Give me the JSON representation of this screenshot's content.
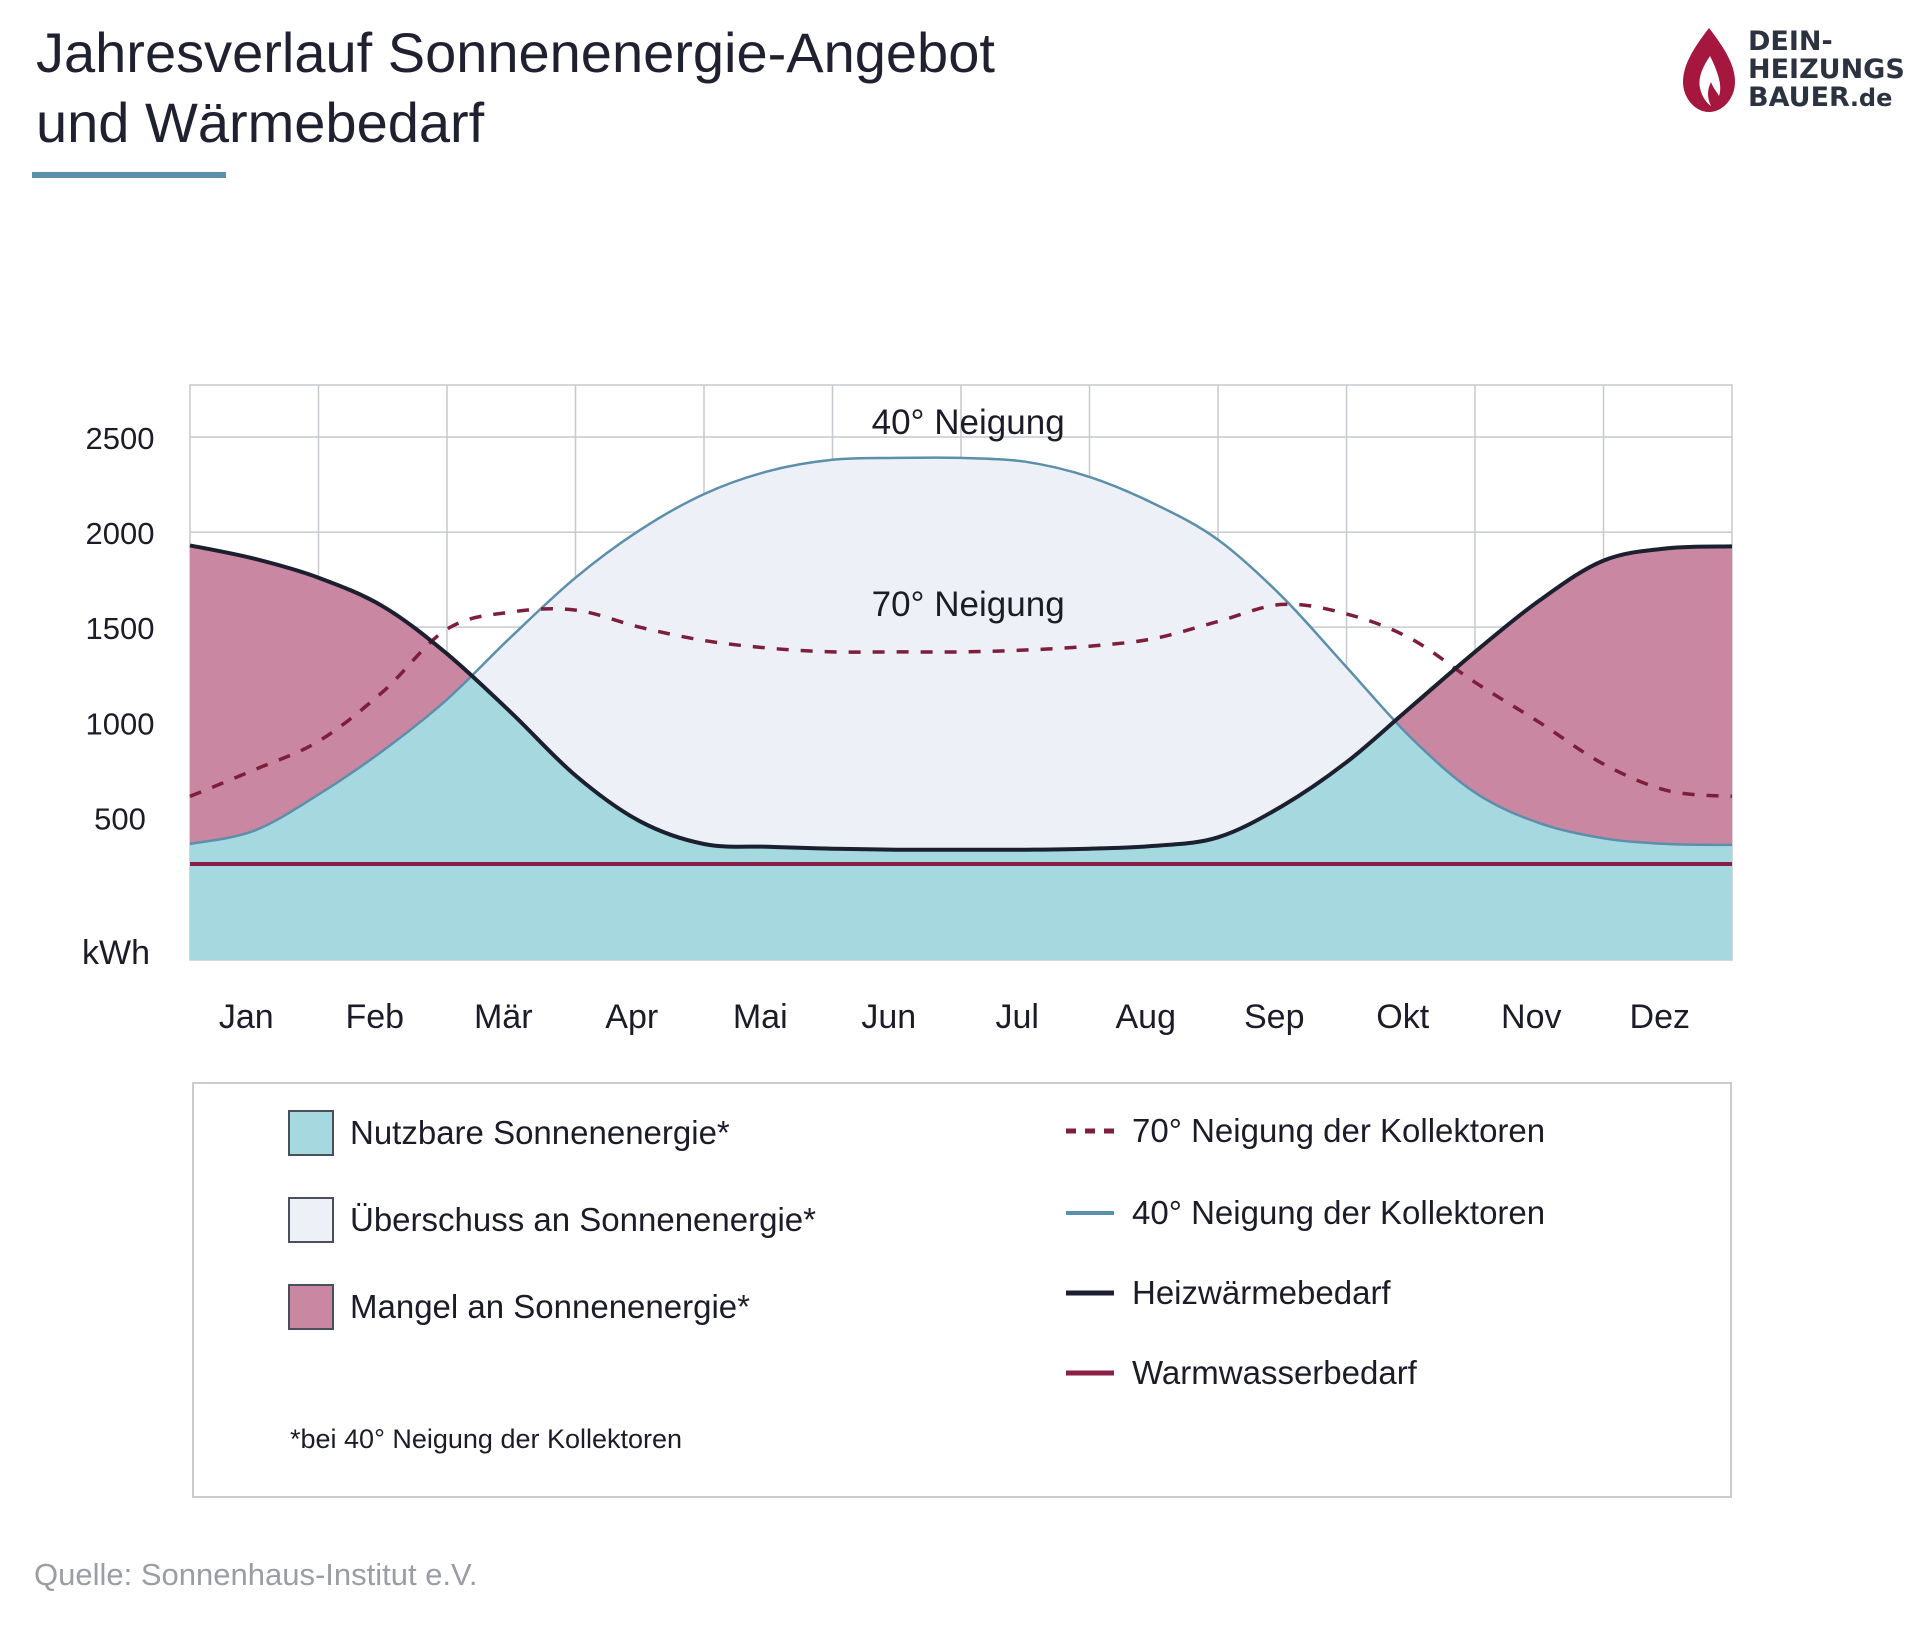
{
  "header": {
    "title_line1": "Jahresverlauf Sonnenenergie-Angebot",
    "title_line2": "und Wärmebedarf"
  },
  "logo": {
    "line1": "DEIN-",
    "line2": "HEIZUNGS",
    "line3": "BAUER",
    "line3_suffix": ".de"
  },
  "colors": {
    "nutzbar": "#a6d8df",
    "ueberschuss": "#edf1f7",
    "mangel": "#c987a2",
    "line70": "#7e1e3d",
    "line40": "#5b8fab",
    "heiz": "#1b1f2e",
    "warmwasser": "#8a1f45",
    "grid": "#c6c9ce"
  },
  "chart_data": {
    "type": "area",
    "x_unit": "Monat",
    "y_unit": "kWh",
    "ylim": [
      0,
      2500
    ],
    "yticks": [
      500,
      1000,
      1500,
      2000,
      2500
    ],
    "ytick_labels": [
      "500",
      "1000",
      "1500",
      "2000",
      "2500"
    ],
    "y_axis_unit_label": "kWh",
    "categories": [
      "Jan",
      "Feb",
      "Mär",
      "Apr",
      "Mai",
      "Jun",
      "Jul",
      "Aug",
      "Sep",
      "Okt",
      "Nov",
      "Dez"
    ],
    "x": [
      0,
      0.5,
      1,
      1.5,
      2,
      2.5,
      3,
      3.5,
      4,
      4.5,
      5,
      5.5,
      6,
      6.5,
      7,
      7.5,
      8,
      8.5,
      9,
      9.5,
      10,
      10.5,
      11,
      11.5,
      12
    ],
    "series": [
      {
        "name": "40° Neigung der Kollektoren",
        "style": "solid",
        "values": [
          360,
          430,
          620,
          850,
          1120,
          1450,
          1760,
          2010,
          2200,
          2320,
          2380,
          2390,
          2390,
          2370,
          2290,
          2150,
          1960,
          1660,
          1290,
          920,
          630,
          470,
          390,
          360,
          355
        ]
      },
      {
        "name": "70° Neigung der Kollektoren",
        "style": "dashed",
        "values": [
          610,
          750,
          900,
          1160,
          1490,
          1580,
          1590,
          1500,
          1430,
          1390,
          1370,
          1370,
          1370,
          1380,
          1400,
          1440,
          1530,
          1620,
          1570,
          1440,
          1210,
          1000,
          780,
          640,
          610
        ]
      },
      {
        "name": "Heizwärmebedarf",
        "style": "solid",
        "values": [
          1930,
          1860,
          1760,
          1610,
          1360,
          1050,
          720,
          480,
          360,
          345,
          335,
          330,
          330,
          330,
          335,
          350,
          395,
          560,
          790,
          1080,
          1370,
          1640,
          1850,
          1915,
          1925
        ]
      },
      {
        "name": "Warmwasserbedarf",
        "style": "solid",
        "values": [
          255,
          255,
          255,
          255,
          255,
          255,
          255,
          255,
          255,
          255,
          255,
          255,
          255,
          255,
          255,
          255,
          255,
          255,
          255,
          255,
          255,
          255,
          255,
          255,
          255
        ]
      }
    ],
    "areas": [
      {
        "name": "Nutzbare Sonnenenergie*",
        "rule": "below min(40°, Heizwärmebedarf)"
      },
      {
        "name": "Überschuss an Sonnenenergie*",
        "rule": "between Heizwärmebedarf and 40° where 40° > Heizwärmebedarf"
      },
      {
        "name": "Mangel an Sonnenenergie*",
        "rule": "between 40° and Heizwärmebedarf where Heizwärmebedarf > 40°"
      }
    ],
    "annotations": [
      {
        "text": "40° Neigung",
        "x": 5.9,
        "y": 2515
      },
      {
        "text": "70° Neigung",
        "x": 5.9,
        "y": 1560
      }
    ],
    "grid": true
  },
  "legend": {
    "items_left": [
      {
        "key": "nutzbar",
        "label": "Nutzbare Sonnenenergie*"
      },
      {
        "key": "ueberschuss",
        "label": "Überschuss an Sonnenenergie*"
      },
      {
        "key": "mangel",
        "label": "Mangel an Sonnenenergie*"
      }
    ],
    "items_right": [
      {
        "key": "line70",
        "label": "70° Neigung der Kollektoren"
      },
      {
        "key": "line40",
        "label": "40° Neigung der Kollektoren"
      },
      {
        "key": "heiz",
        "label": "Heizwärmebedarf"
      },
      {
        "key": "warmwasser",
        "label": "Warmwasserbedarf"
      }
    ],
    "footnote": "*bei 40° Neigung der Kollektoren"
  },
  "source": "Quelle: Sonnenhaus-Institut e.V."
}
